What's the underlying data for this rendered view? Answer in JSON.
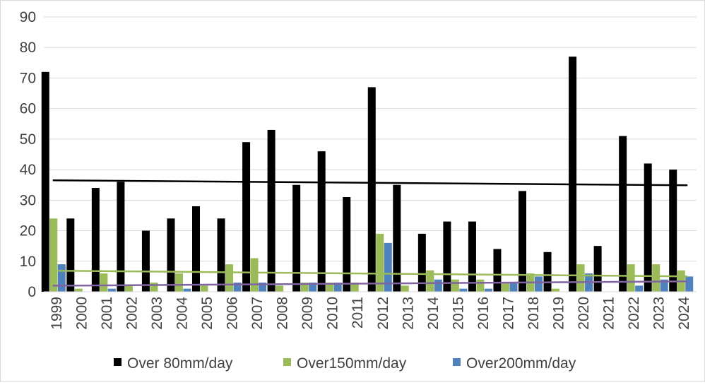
{
  "chart_data": {
    "type": "bar",
    "title": "",
    "xlabel": "",
    "ylabel": "",
    "ylim": [
      0,
      90
    ],
    "yticks": [
      0,
      10,
      20,
      30,
      40,
      50,
      60,
      70,
      80,
      90
    ],
    "grid": true,
    "legend_position": "bottom",
    "categories": [
      "1999",
      "2000",
      "2001",
      "2002",
      "2003",
      "2004",
      "2005",
      "2006",
      "2007",
      "2008",
      "2009",
      "2010",
      "2011",
      "2012",
      "2013",
      "2014",
      "2015",
      "2016",
      "2017",
      "2018",
      "2019",
      "2020",
      "2021",
      "2022",
      "2023",
      "2024"
    ],
    "series": [
      {
        "name": "Over 80mm/day",
        "color": "#000000",
        "trendline_color": "#000000",
        "values": [
          72,
          24,
          34,
          36,
          20,
          24,
          28,
          24,
          49,
          53,
          35,
          46,
          31,
          67,
          35,
          19,
          23,
          23,
          14,
          33,
          13,
          77,
          15,
          51,
          42,
          40
        ]
      },
      {
        "name": "Over150mm/day",
        "color": "#9bbb59",
        "trendline_color": "#9bbb59",
        "values": [
          24,
          1,
          6,
          2,
          3,
          6,
          2,
          9,
          11,
          2,
          3,
          3,
          3,
          19,
          2,
          7,
          4,
          4,
          3,
          6,
          1,
          9,
          0,
          9,
          9,
          7
        ]
      },
      {
        "name": "Over200mm/day",
        "color": "#4f81bd",
        "trendline_color": "#8064a2",
        "values": [
          9,
          0,
          1,
          0,
          0,
          1,
          0,
          3,
          3,
          0,
          3,
          3,
          0,
          16,
          0,
          4,
          1,
          1,
          3,
          5,
          0,
          6,
          0,
          2,
          4,
          5
        ]
      }
    ],
    "trendlines": "linear"
  }
}
